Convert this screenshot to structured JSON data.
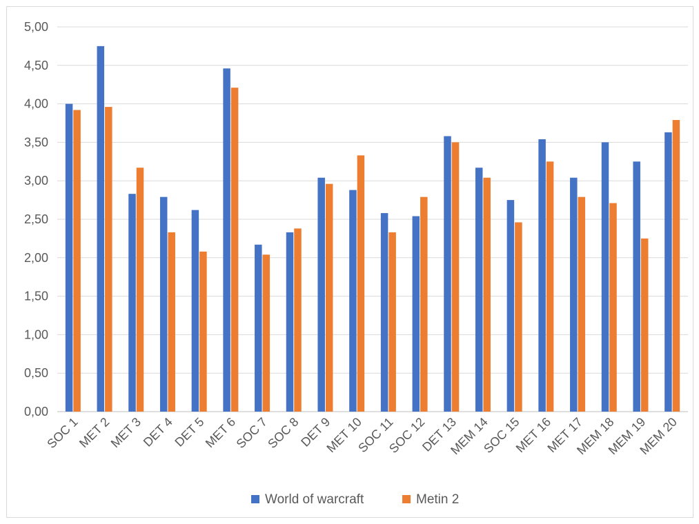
{
  "chart_data": {
    "type": "bar",
    "title": "",
    "xlabel": "",
    "ylabel": "",
    "ylim": [
      0,
      5
    ],
    "y_ticks": [
      "0,00",
      "0,50",
      "1,00",
      "1,50",
      "2,00",
      "2,50",
      "3,00",
      "3,50",
      "4,00",
      "4,50",
      "5,00"
    ],
    "grid": true,
    "legend_position": "bottom",
    "categories": [
      "SOC 1",
      "MET 2",
      "MET 3",
      "DET 4",
      "DET 5",
      "MET 6",
      "SOC 7",
      "SOC 8",
      "DET 9",
      "MET 10",
      "SOC 11",
      "SOC 12",
      "DET 13",
      "MEM 14",
      "SOC 15",
      "MET 16",
      "MET 17",
      "MEM 18",
      "MEM 19",
      "MEM 20"
    ],
    "series": [
      {
        "name": "World of warcraft",
        "color": "#4472c4",
        "values": [
          4.0,
          4.75,
          2.83,
          2.79,
          2.62,
          4.46,
          2.17,
          2.33,
          3.04,
          2.88,
          2.58,
          2.54,
          3.58,
          3.17,
          2.75,
          3.54,
          3.04,
          3.5,
          3.25,
          3.63
        ]
      },
      {
        "name": "Metin 2",
        "color": "#ed7d31",
        "values": [
          3.92,
          3.96,
          3.17,
          2.33,
          2.08,
          4.21,
          2.04,
          2.38,
          2.96,
          3.33,
          2.33,
          2.79,
          3.5,
          3.04,
          2.46,
          3.25,
          2.79,
          2.71,
          2.25,
          3.79
        ]
      }
    ]
  }
}
